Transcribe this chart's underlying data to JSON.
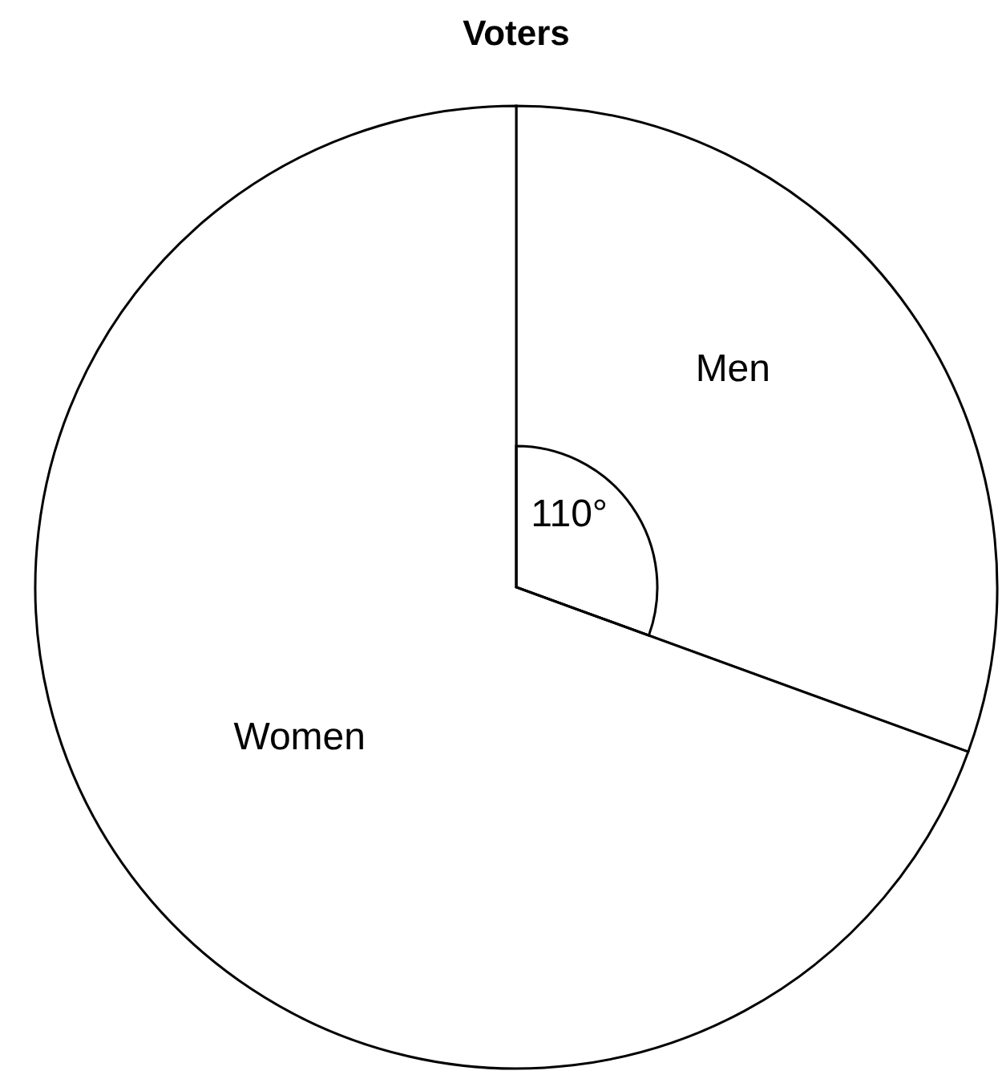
{
  "chart_data": {
    "type": "pie",
    "title": "Voters",
    "categories": [
      "Men",
      "Women"
    ],
    "values": [
      110,
      250
    ],
    "colors": [
      "#ffffff",
      "#ffffff"
    ],
    "value_labels": [
      "110°",
      null
    ]
  }
}
